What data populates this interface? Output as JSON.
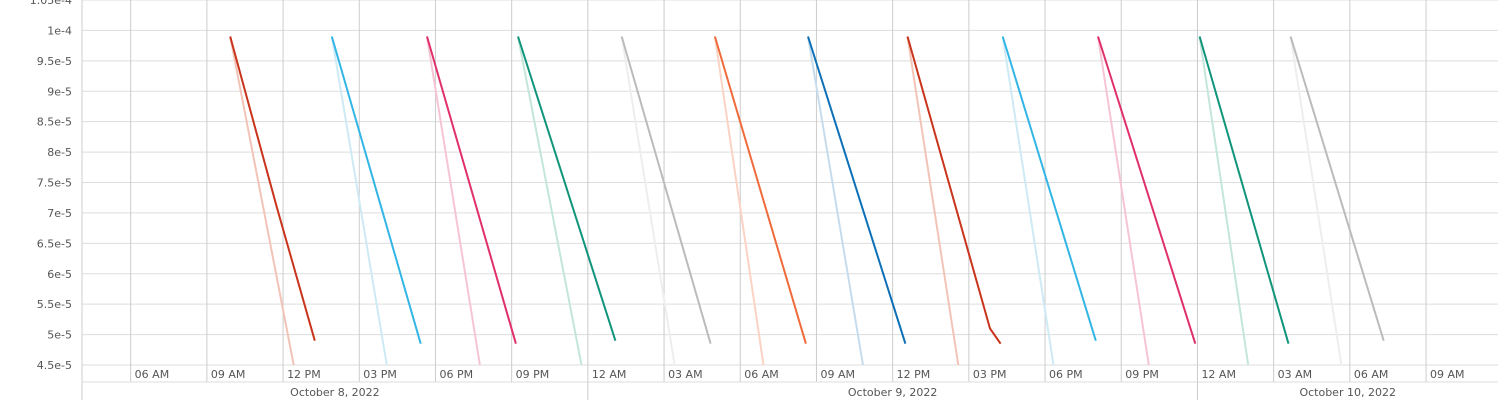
{
  "chart_data": {
    "type": "line",
    "title": "",
    "xlabel": "",
    "ylabel": "",
    "ylim": [
      4.5e-05,
      0.000105
    ],
    "y_ticks": [
      "1.05e-4",
      "1e-4",
      "9.5e-5",
      "9e-5",
      "8.5e-5",
      "8e-5",
      "7.5e-5",
      "7e-5",
      "6.5e-5",
      "6e-5",
      "5.5e-5",
      "5e-5",
      "4.5e-5"
    ],
    "y_tick_values": [
      0.000105,
      0.0001,
      9.5e-05,
      9e-05,
      8.5e-05,
      8e-05,
      7.5e-05,
      7e-05,
      6.5e-05,
      6e-05,
      5.5e-05,
      5e-05,
      4.5e-05
    ],
    "xlim": [
      "2022-10-08 04:05",
      "2022-10-10 11:50"
    ],
    "x_ticks": [
      {
        "label": "06 AM",
        "t": "2022-10-08 06:00"
      },
      {
        "label": "09 AM",
        "t": "2022-10-08 09:00"
      },
      {
        "label": "12 PM",
        "t": "2022-10-08 12:00"
      },
      {
        "label": "03 PM",
        "t": "2022-10-08 15:00"
      },
      {
        "label": "06 PM",
        "t": "2022-10-08 18:00"
      },
      {
        "label": "09 PM",
        "t": "2022-10-08 21:00"
      },
      {
        "label": "12 AM",
        "t": "2022-10-09 00:00"
      },
      {
        "label": "03 AM",
        "t": "2022-10-09 03:00"
      },
      {
        "label": "06 AM",
        "t": "2022-10-09 06:00"
      },
      {
        "label": "09 AM",
        "t": "2022-10-09 09:00"
      },
      {
        "label": "12 PM",
        "t": "2022-10-09 12:00"
      },
      {
        "label": "03 PM",
        "t": "2022-10-09 15:00"
      },
      {
        "label": "06 PM",
        "t": "2022-10-09 18:00"
      },
      {
        "label": "09 PM",
        "t": "2022-10-09 21:00"
      },
      {
        "label": "12 AM",
        "t": "2022-10-10 00:00"
      },
      {
        "label": "03 AM",
        "t": "2022-10-10 03:00"
      },
      {
        "label": "06 AM",
        "t": "2022-10-10 06:00"
      },
      {
        "label": "09 AM",
        "t": "2022-10-10 09:00"
      }
    ],
    "date_labels": [
      {
        "label": "October 8, 2022",
        "start": "2022-10-08 04:05",
        "end": "2022-10-09 00:00"
      },
      {
        "label": "October 9, 2022",
        "start": "2022-10-09 00:00",
        "end": "2022-10-10 00:00"
      },
      {
        "label": "October 10, 2022",
        "start": "2022-10-10 00:00",
        "end": "2022-10-10 11:50"
      }
    ],
    "grid": true,
    "series": [
      {
        "color": "#c8341c",
        "points": [
          [
            "2022-10-08 09:55",
            9.9e-05
          ],
          [
            "2022-10-08 11:45",
            7.1e-05
          ],
          [
            "2022-10-08 13:15",
            4.9e-05
          ]
        ]
      },
      {
        "color": "#f2c4b8",
        "points": [
          [
            "2022-10-08 09:55",
            9.9e-05
          ],
          [
            "2022-10-08 12:25",
            4.5e-05
          ]
        ]
      },
      {
        "color": "#33b5e5",
        "points": [
          [
            "2022-10-08 13:55",
            9.9e-05
          ],
          [
            "2022-10-08 17:25",
            4.85e-05
          ]
        ]
      },
      {
        "color": "#cdeaf5",
        "points": [
          [
            "2022-10-08 13:55",
            9.9e-05
          ],
          [
            "2022-10-08 16:05",
            4.5e-05
          ]
        ]
      },
      {
        "color": "#e0306a",
        "points": [
          [
            "2022-10-08 17:40",
            9.9e-05
          ],
          [
            "2022-10-08 21:10",
            4.85e-05
          ]
        ]
      },
      {
        "color": "#f6c5d3",
        "points": [
          [
            "2022-10-08 17:40",
            9.9e-05
          ],
          [
            "2022-10-08 19:45",
            4.5e-05
          ]
        ]
      },
      {
        "color": "#10957a",
        "points": [
          [
            "2022-10-08 21:15",
            9.9e-05
          ],
          [
            "2022-10-09 01:05",
            4.9e-05
          ]
        ]
      },
      {
        "color": "#c4e6da",
        "points": [
          [
            "2022-10-08 21:15",
            9.9e-05
          ],
          [
            "2022-10-08 23:45",
            4.5e-05
          ]
        ]
      },
      {
        "color": "#bbbbbb",
        "points": [
          [
            "2022-10-09 01:20",
            9.9e-05
          ],
          [
            "2022-10-09 04:50",
            4.85e-05
          ]
        ]
      },
      {
        "color": "#eeeeee",
        "points": [
          [
            "2022-10-09 01:20",
            9.9e-05
          ],
          [
            "2022-10-09 03:25",
            4.5e-05
          ]
        ]
      },
      {
        "color": "#ef6b3b",
        "points": [
          [
            "2022-10-09 05:00",
            9.9e-05
          ],
          [
            "2022-10-09 08:35",
            4.85e-05
          ]
        ]
      },
      {
        "color": "#fad3c4",
        "points": [
          [
            "2022-10-09 05:00",
            9.9e-05
          ],
          [
            "2022-10-09 06:55",
            4.5e-05
          ]
        ]
      },
      {
        "color": "#0d70b7",
        "points": [
          [
            "2022-10-09 08:40",
            9.9e-05
          ],
          [
            "2022-10-09 12:30",
            4.85e-05
          ]
        ]
      },
      {
        "color": "#c6dced",
        "points": [
          [
            "2022-10-09 08:40",
            9.9e-05
          ],
          [
            "2022-10-09 10:50",
            4.5e-05
          ]
        ]
      },
      {
        "color": "#c8341c",
        "points": [
          [
            "2022-10-09 12:35",
            9.9e-05
          ],
          [
            "2022-10-09 15:50",
            5.1e-05
          ],
          [
            "2022-10-09 16:15",
            4.85e-05
          ]
        ]
      },
      {
        "color": "#f2c4b8",
        "points": [
          [
            "2022-10-09 12:35",
            9.9e-05
          ],
          [
            "2022-10-09 14:35",
            4.5e-05
          ]
        ]
      },
      {
        "color": "#33b5e5",
        "points": [
          [
            "2022-10-09 16:20",
            9.9e-05
          ],
          [
            "2022-10-09 20:00",
            4.9e-05
          ]
        ]
      },
      {
        "color": "#cdeaf5",
        "points": [
          [
            "2022-10-09 16:20",
            9.9e-05
          ],
          [
            "2022-10-09 18:20",
            4.5e-05
          ]
        ]
      },
      {
        "color": "#e0306a",
        "points": [
          [
            "2022-10-09 20:05",
            9.9e-05
          ],
          [
            "2022-10-09 23:55",
            4.85e-05
          ]
        ]
      },
      {
        "color": "#f6c5d3",
        "points": [
          [
            "2022-10-09 20:05",
            9.9e-05
          ],
          [
            "2022-10-09 22:05",
            4.5e-05
          ]
        ]
      },
      {
        "color": "#10957a",
        "points": [
          [
            "2022-10-10 00:05",
            9.9e-05
          ],
          [
            "2022-10-10 03:35",
            4.85e-05
          ]
        ]
      },
      {
        "color": "#c4e6da",
        "points": [
          [
            "2022-10-10 00:05",
            9.9e-05
          ],
          [
            "2022-10-10 02:00",
            4.5e-05
          ]
        ]
      },
      {
        "color": "#bbbbbb",
        "points": [
          [
            "2022-10-10 03:40",
            9.9e-05
          ],
          [
            "2022-10-10 07:20",
            4.9e-05
          ]
        ]
      },
      {
        "color": "#eeeeee",
        "points": [
          [
            "2022-10-10 03:40",
            9.9e-05
          ],
          [
            "2022-10-10 05:40",
            4.5e-05
          ]
        ]
      }
    ]
  }
}
